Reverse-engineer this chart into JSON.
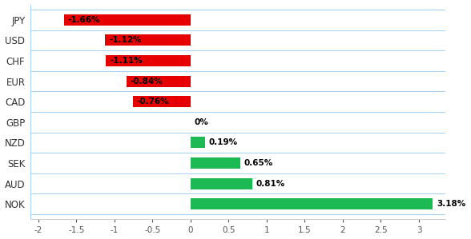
{
  "categories": [
    "JPY",
    "USD",
    "CHF",
    "EUR",
    "CAD",
    "GBP",
    "NZD",
    "SEK",
    "AUD",
    "NOK"
  ],
  "values": [
    -1.66,
    -1.12,
    -1.11,
    -0.84,
    -0.76,
    0.0,
    0.19,
    0.65,
    0.81,
    3.18
  ],
  "labels": [
    "-1.66%",
    "-1.12%",
    "-1.11%",
    "-0.84%",
    "-0.76%",
    "0%",
    "0.19%",
    "0.65%",
    "0.81%",
    "3.18%"
  ],
  "bar_color_negative": "#e60000",
  "bar_color_positive": "#1db954",
  "xlim": [
    -2.1,
    3.35
  ],
  "xticks": [
    -2,
    -1.5,
    -1,
    -0.5,
    0,
    0.5,
    1,
    1.5,
    2,
    2.5,
    3
  ],
  "xtick_labels": [
    "-2",
    "-1.5",
    "-1",
    "-0.5",
    "0",
    "0.5",
    "1",
    "1.5",
    "2",
    "2.5",
    "3"
  ],
  "background_color": "#ffffff",
  "bar_height": 0.55,
  "left_border_color": "#aad4f5",
  "separator_color": "#aad4f5"
}
